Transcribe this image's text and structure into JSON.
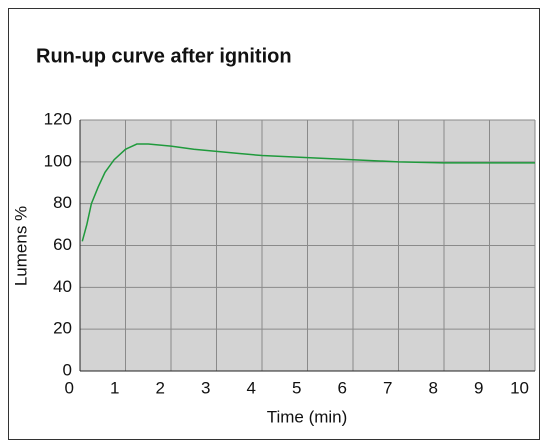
{
  "chart_data": {
    "type": "line",
    "title": "Run-up curve after ignition",
    "x_label": "Time (min)",
    "y_label": "Lumens %",
    "xlim": [
      0,
      10
    ],
    "ylim": [
      0,
      120
    ],
    "xticks": [
      0,
      1,
      2,
      3,
      4,
      5,
      6,
      7,
      8,
      9,
      10
    ],
    "yticks": [
      0,
      20,
      40,
      60,
      80,
      100,
      120
    ],
    "grid": true,
    "series": [
      {
        "color": "#1f9a3c",
        "x": [
          0.05,
          0.15,
          0.25,
          0.4,
          0.55,
          0.75,
          1,
          1.25,
          1.5,
          2,
          2.5,
          3,
          3.5,
          4,
          5,
          6,
          7,
          8,
          9,
          10
        ],
        "values": [
          62,
          70,
          80,
          88,
          95,
          101,
          106,
          108.5,
          108.5,
          107.5,
          106,
          105,
          104,
          103,
          102,
          101,
          100,
          99.5,
          99.5,
          99.5
        ]
      }
    ]
  }
}
